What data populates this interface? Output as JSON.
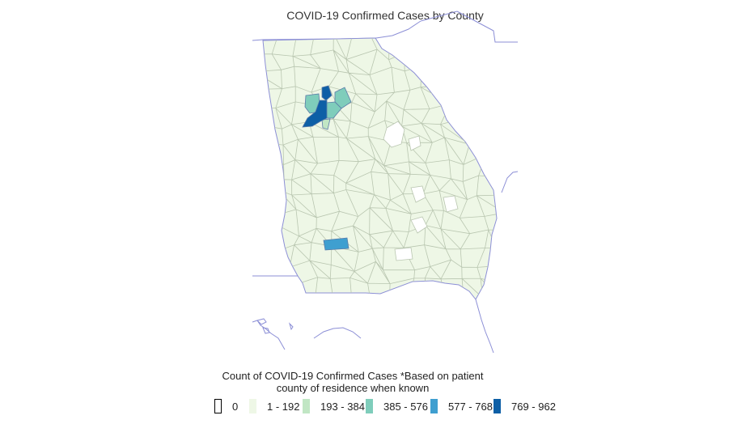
{
  "map": {
    "title": "COVID-19 Confirmed Cases by County",
    "region": "Georgia",
    "colors": {
      "background": "#ffffff",
      "border": "#8c8fd6",
      "county_stroke": "#b9c6b0",
      "zero": "#ffffff",
      "bin1": "#eef7e6",
      "bin2": "#c1e6c4",
      "bin3": "#7fcdbb",
      "bin4": "#3f9fd0",
      "bin5": "#0d5fa6"
    }
  },
  "legend": {
    "title_line1": "Count of COVID-19 Confirmed Cases *Based on patient",
    "title_line2": "county of residence when known",
    "items": [
      {
        "label": "0",
        "color": "#ffffff"
      },
      {
        "label": "1 - 192",
        "color": "#eef7e6"
      },
      {
        "label": "193 - 384",
        "color": "#c1e6c4"
      },
      {
        "label": "385 - 576",
        "color": "#7fcdbb"
      },
      {
        "label": "577 - 768",
        "color": "#3f9fd0"
      },
      {
        "label": "769 - 962",
        "color": "#0d5fa6"
      }
    ]
  }
}
